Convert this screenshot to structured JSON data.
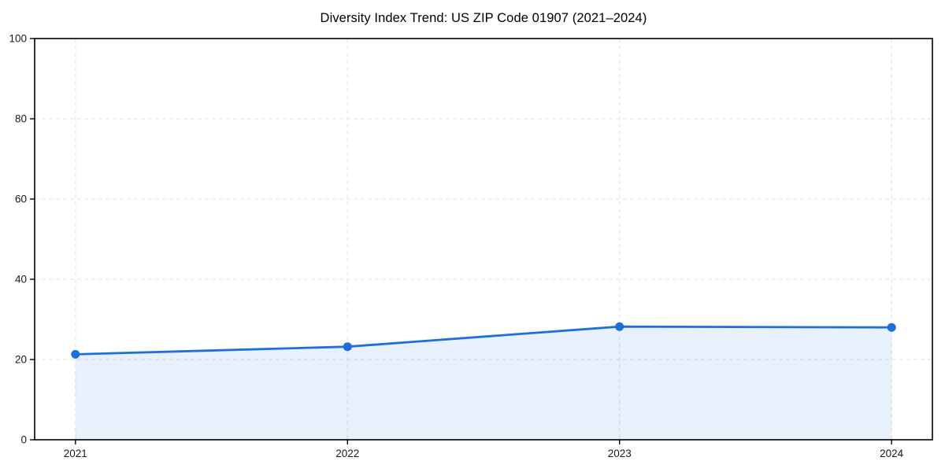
{
  "chart_data": {
    "type": "area",
    "title": "Diversity Index Trend: US ZIP Code 01907 (2021–2024)",
    "x": [
      2021,
      2022,
      2023,
      2024
    ],
    "values": [
      21.3,
      23.2,
      28.2,
      28.0
    ],
    "xticks": [
      "2021",
      "2022",
      "2023",
      "2024"
    ],
    "yticks": [
      0,
      20,
      40,
      60,
      80,
      100
    ],
    "xlim": [
      2020.85,
      2024.15
    ],
    "ylim": [
      0,
      100
    ],
    "xlabel": "",
    "ylabel": "",
    "grid": true,
    "grid_style": "dashed",
    "legend": "none",
    "line_color": "#1f6fdb",
    "marker_color": "#1f6fdb",
    "fill_color": "#1f6fdb",
    "fill_opacity": 0.1,
    "axis_color": "#000000",
    "grid_color": "#e0e0e0",
    "tick_label_color": "#1a1a1a",
    "title_color": "#000000"
  }
}
